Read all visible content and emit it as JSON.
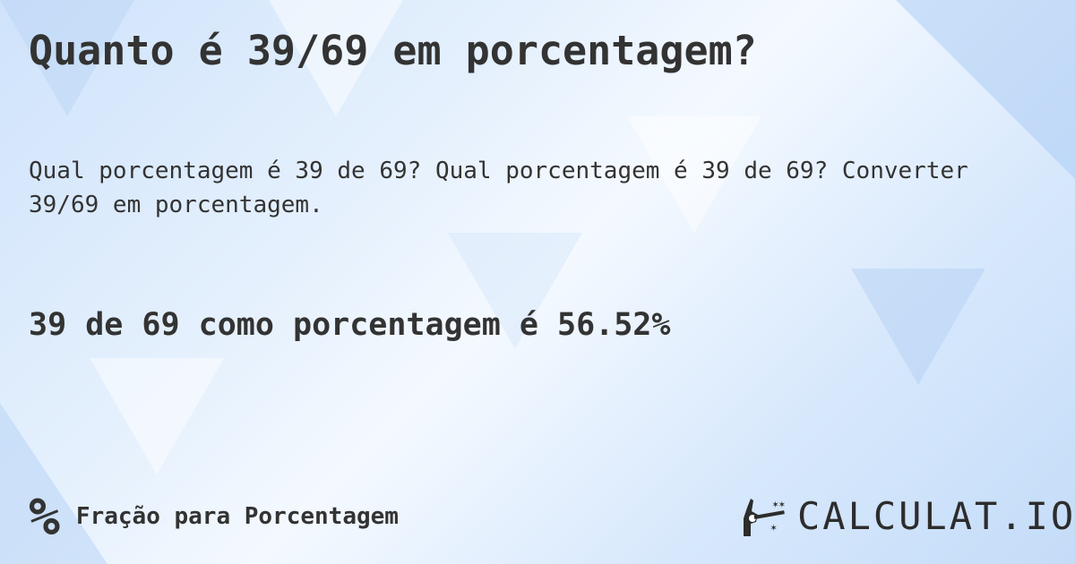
{
  "title": "Quanto é 39/69 em porcentagem?",
  "description": "Qual porcentagem é 39 de 69? Qual porcentagem é 39 de 69? Converter 39/69 em porcentagem.",
  "answer": "39 de 69 como porcentagem é 56.52%",
  "footer": {
    "icon": "percent-icon",
    "symbol": "%",
    "category": "Fração para Porcentagem"
  },
  "logo": {
    "text": "CALCULAT.IO",
    "icon": "magic-hand-icon"
  }
}
